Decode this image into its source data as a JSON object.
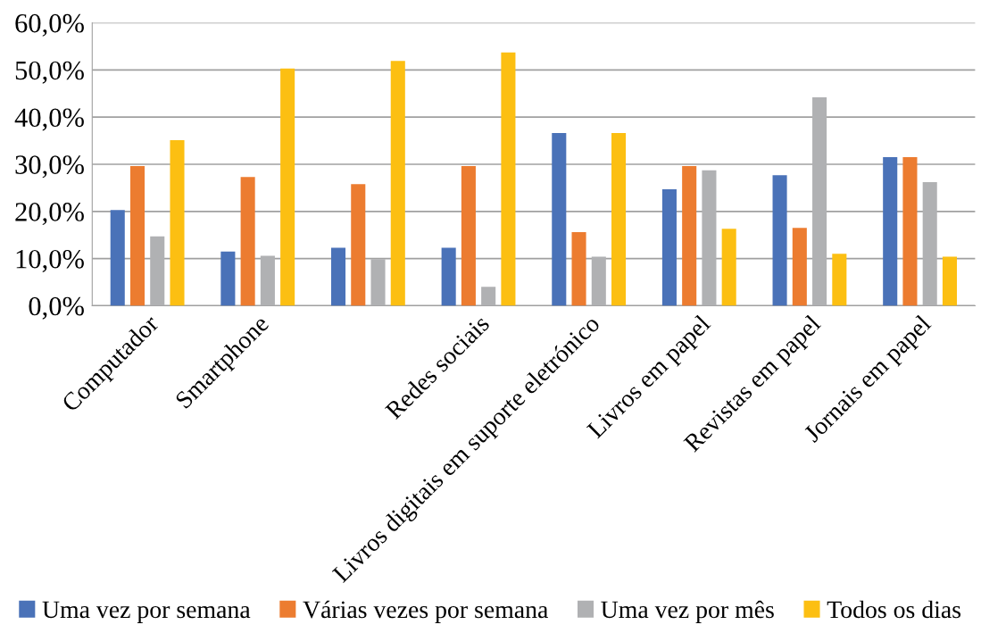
{
  "chart_data": {
    "type": "bar",
    "categories": [
      "Computador",
      "Smartphone",
      null,
      "Redes sociais",
      "Livros digitais em suporte eletrónico",
      "Livros em papel",
      "Revistas em papel",
      "Jornais em papel"
    ],
    "series": [
      {
        "name": "Uma vez por semana",
        "color": "#4a72b8",
        "values": [
          20.3,
          11.5,
          12.3,
          12.3,
          36.6,
          24.7,
          27.7,
          31.5
        ]
      },
      {
        "name": "Várias vezes por semana",
        "color": "#ec7c30",
        "values": [
          29.6,
          27.3,
          25.8,
          29.6,
          15.6,
          29.6,
          16.5,
          31.5
        ]
      },
      {
        "name": "Uma vez por mês",
        "color": "#b0b1b3",
        "values": [
          14.7,
          10.6,
          9.9,
          4.0,
          10.4,
          28.7,
          44.2,
          26.2
        ]
      },
      {
        "name": "Todos os dias",
        "color": "#fcbf12",
        "values": [
          35.1,
          50.3,
          51.9,
          53.7,
          36.6,
          16.3,
          11.0,
          10.4
        ]
      }
    ],
    "ylim": [
      0,
      60
    ],
    "yticks": [
      {
        "value": 0,
        "label": "0,0%"
      },
      {
        "value": 10,
        "label": "10,0%"
      },
      {
        "value": 20,
        "label": "20,0%"
      },
      {
        "value": 30,
        "label": "30,0%"
      },
      {
        "value": 40,
        "label": "40,0%"
      },
      {
        "value": 50,
        "label": "50,0%"
      },
      {
        "value": 60,
        "label": "60,0%"
      }
    ],
    "grid": "y",
    "legend": "bottom"
  }
}
